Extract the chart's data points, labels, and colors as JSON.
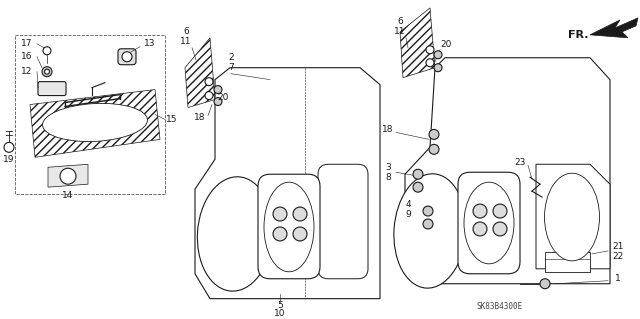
{
  "bg_color": "#ffffff",
  "line_color": "#1a1a1a",
  "diagram_code": "SK83B4300E",
  "fig_w": 6.4,
  "fig_h": 3.19,
  "dpi": 100
}
